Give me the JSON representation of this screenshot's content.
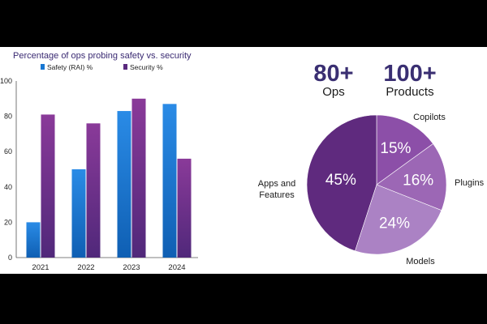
{
  "chart_data": [
    {
      "type": "bar",
      "title": "Percentage of ops probing safety vs. security",
      "categories": [
        "2021",
        "2022",
        "2023",
        "2024"
      ],
      "series": [
        {
          "name": "Safety (RAI) %",
          "values": [
            20,
            50,
            83,
            87
          ]
        },
        {
          "name": "Security %",
          "values": [
            81,
            76,
            90,
            56
          ]
        }
      ],
      "xlabel": "",
      "ylabel": "",
      "ylim": [
        0,
        100
      ],
      "yticks": [
        "0",
        "20",
        "40",
        "60",
        "80",
        "100"
      ],
      "colors": [
        "#1877d2",
        "#6d2f87"
      ]
    },
    {
      "type": "pie",
      "slices": [
        {
          "label": "Copilots",
          "value": 15,
          "value_label": "15%",
          "color": "#8c4fa8"
        },
        {
          "label": "Plugins",
          "value": 16,
          "value_label": "16%",
          "color": "#9c67b5"
        },
        {
          "label": "Models",
          "value": 24,
          "value_label": "24%",
          "color": "#ab82c4"
        },
        {
          "label": "Apps and Features",
          "value": 45,
          "value_label": "45%",
          "color": "#5f2a7e"
        }
      ]
    }
  ],
  "stats": [
    {
      "value": "80+",
      "label": "Ops"
    },
    {
      "value": "100+",
      "label": "Products"
    }
  ],
  "pie_labels": {
    "apps_line1": "Apps and",
    "apps_line2": "Features"
  }
}
